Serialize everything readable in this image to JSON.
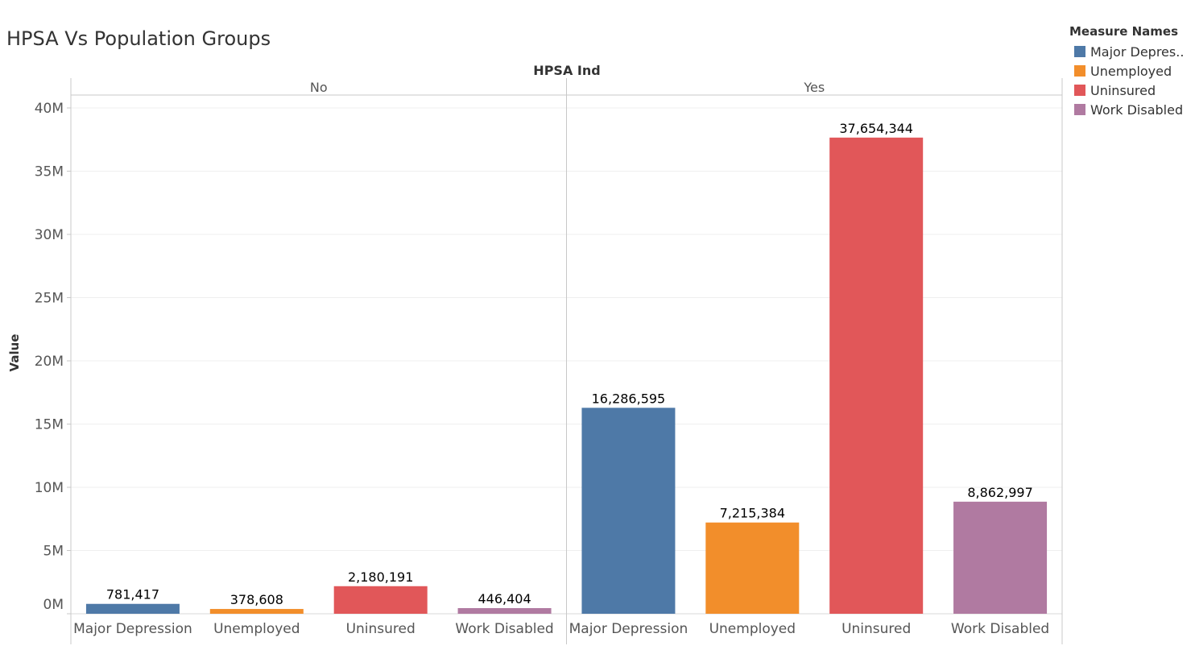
{
  "title": "HPSA Vs Population Groups",
  "legend": {
    "title": "Measure Names",
    "items": [
      {
        "label": "Major Depres..",
        "color": "#4e79a7"
      },
      {
        "label": "Unemployed",
        "color": "#f28e2b"
      },
      {
        "label": "Uninsured",
        "color": "#e15759"
      },
      {
        "label": "Work Disabled",
        "color": "#b07aa1"
      }
    ]
  },
  "chart_data": {
    "type": "bar",
    "column_header": "HPSA Ind",
    "ylabel": "Value",
    "ylim": [
      0,
      42000000
    ],
    "y_ticks": [
      {
        "value": 0,
        "label": "0M"
      },
      {
        "value": 5000000,
        "label": "5M"
      },
      {
        "value": 10000000,
        "label": "10M"
      },
      {
        "value": 15000000,
        "label": "15M"
      },
      {
        "value": 20000000,
        "label": "20M"
      },
      {
        "value": 25000000,
        "label": "25M"
      },
      {
        "value": 30000000,
        "label": "30M"
      },
      {
        "value": 35000000,
        "label": "35M"
      },
      {
        "value": 40000000,
        "label": "40M"
      }
    ],
    "categories": [
      "Major Depression",
      "Unemployed",
      "Uninsured",
      "Work Disabled"
    ],
    "colors": [
      "#4e79a7",
      "#f28e2b",
      "#e15759",
      "#b07aa1"
    ],
    "panels": [
      {
        "name": "No",
        "values": [
          781417,
          378608,
          2180191,
          446404
        ],
        "value_labels": [
          "781,417",
          "378,608",
          "2,180,191",
          "446,404"
        ]
      },
      {
        "name": "Yes",
        "values": [
          16286595,
          7215384,
          37654344,
          8862997
        ],
        "value_labels": [
          "16,286,595",
          "7,215,384",
          "37,654,344",
          "8,862,997"
        ]
      }
    ],
    "grid": true,
    "legend_position": "top-right"
  }
}
